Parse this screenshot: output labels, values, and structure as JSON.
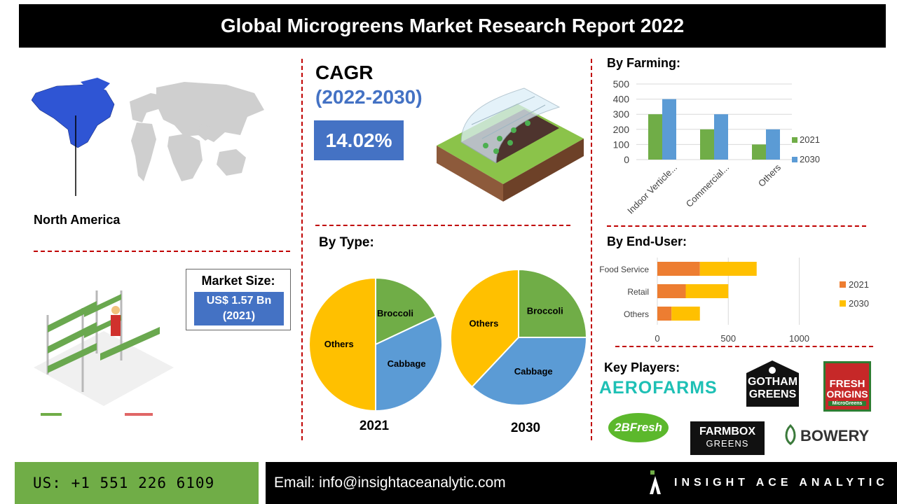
{
  "title": "Global Microgreens Market Research Report 2022",
  "region": {
    "label": "North America"
  },
  "cagr": {
    "title": "CAGR",
    "period": "(2022-2030)",
    "value": "14.02%"
  },
  "market_size": {
    "label": "Market Size:",
    "value_line1": "US$ 1.57 Bn",
    "value_line2": "(2021)"
  },
  "by_type": {
    "title": "By Type:",
    "charts": [
      {
        "year": "2021",
        "slices": [
          {
            "name": "Broccoli",
            "color": "#70ad47"
          },
          {
            "name": "Cabbage",
            "color": "#5b9bd5"
          },
          {
            "name": "Others",
            "color": "#ffc000"
          }
        ]
      },
      {
        "year": "2030",
        "slices": [
          {
            "name": "Broccoli",
            "color": "#70ad47"
          },
          {
            "name": "Cabbage",
            "color": "#5b9bd5"
          },
          {
            "name": "Others",
            "color": "#ffc000"
          }
        ]
      }
    ]
  },
  "by_farming": {
    "title": "By Farming:"
  },
  "by_end_user": {
    "title": "By End-User:"
  },
  "key_players": {
    "title": "Key Players:",
    "logos": [
      "AEROFARMS",
      "GOTHAM",
      "GREENS",
      "FRESH",
      "ORIGINS",
      "MicroGreens",
      "2BFresh",
      "FARMBOX",
      "GREENS",
      "BOWERY"
    ]
  },
  "footer": {
    "phone": "US: +1 551 226 6109",
    "email": "Email: info@insightaceanalytic.com",
    "brand": "INSIGHT ACE ANALYTIC"
  },
  "chart_data": [
    {
      "type": "bar",
      "categories": [
        "Indoor Verticle...",
        "Commercial...",
        "Others"
      ],
      "series": [
        {
          "name": "2021",
          "values": [
            300,
            200,
            100
          ],
          "color": "#70ad47"
        },
        {
          "name": "2030",
          "values": [
            400,
            300,
            200
          ],
          "color": "#5b9bd5"
        }
      ],
      "yticks": [
        0,
        100,
        200,
        300,
        400,
        500
      ],
      "ylim": [
        0,
        500
      ],
      "grid": true,
      "legend": "right"
    },
    {
      "type": "bar",
      "orientation": "horizontal",
      "stacked": true,
      "categories": [
        "Food Service",
        "Retail",
        "Others"
      ],
      "series": [
        {
          "name": "2021",
          "values": [
            300,
            200,
            100
          ],
          "color": "#ed7d31"
        },
        {
          "name": "2030",
          "values": [
            400,
            300,
            200
          ],
          "color": "#ffc000"
        }
      ],
      "xticks": [
        0,
        500,
        1000
      ],
      "xlim": [
        0,
        1200
      ],
      "grid": true,
      "legend": "right"
    },
    {
      "type": "pie",
      "label": "2021",
      "categories": [
        "Broccoli",
        "Cabbage",
        "Others"
      ],
      "values": [
        18,
        32,
        50
      ],
      "colors": [
        "#70ad47",
        "#5b9bd5",
        "#ffc000"
      ]
    },
    {
      "type": "pie",
      "label": "2030",
      "categories": [
        "Broccoli",
        "Cabbage",
        "Others"
      ],
      "values": [
        25,
        37,
        38
      ],
      "colors": [
        "#70ad47",
        "#5b9bd5",
        "#ffc000"
      ]
    }
  ]
}
